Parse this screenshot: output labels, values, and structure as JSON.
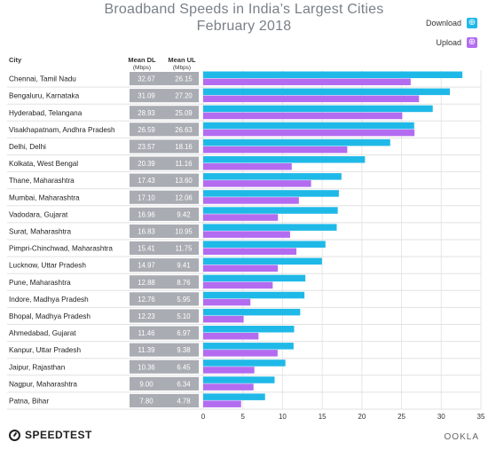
{
  "title_line1": "Broadband Speeds in India’s Largest Cities",
  "title_line2": "February 2018",
  "legend": {
    "download": "Download",
    "upload": "Upload"
  },
  "colors": {
    "download": "#1fb9e8",
    "upload": "#b36cf0",
    "value_cell": "#a9acb2",
    "row_line": "#e2e2e2"
  },
  "headers": {
    "city": "City",
    "dl": "Mean DL",
    "ul": "Mean UL",
    "unit": "(Mbps)"
  },
  "chart_data": {
    "type": "bar",
    "orientation": "horizontal",
    "categories": [
      "Chennai, Tamil Nadu",
      "Bengaluru, Karnataka",
      "Hyderabad, Telangana",
      "Visakhapatnam, Andhra Pradesh",
      "Delhi, Delhi",
      "Kolkata, West Bengal",
      "Thane, Maharashtra",
      "Mumbai, Maharashtra",
      "Vadodara, Gujarat",
      "Surat, Maharashtra",
      "Pimpri-Chinchwad, Maharashtra",
      "Lucknow, Uttar Pradesh",
      "Pune, Maharashtra",
      "Indore, Madhya Pradesh",
      "Bhopal, Madhya Pradesh",
      "Ahmedabad, Gujarat",
      "Kanpur, Uttar Pradesh",
      "Jaipur, Rajasthan",
      "Nagpur, Maharashtra",
      "Patna, Bihar"
    ],
    "series": [
      {
        "name": "Download",
        "values": [
          32.67,
          31.09,
          28.93,
          26.59,
          23.57,
          20.39,
          17.43,
          17.1,
          16.96,
          16.83,
          15.41,
          14.97,
          12.88,
          12.76,
          12.23,
          11.46,
          11.39,
          10.36,
          9.0,
          7.8
        ],
        "labels": [
          "32.67",
          "31.09",
          "28.93",
          "26.59",
          "23.57",
          "20.39",
          "17.43",
          "17.10",
          "16.96",
          "16.83",
          "15.41",
          "14.97",
          "12.88",
          "12.76",
          "12.23",
          "11.46",
          "11.39",
          "10.36",
          "9.00",
          "7.80"
        ]
      },
      {
        "name": "Upload",
        "values": [
          26.15,
          27.2,
          25.09,
          26.63,
          18.16,
          11.16,
          13.6,
          12.06,
          9.42,
          10.95,
          11.75,
          9.41,
          8.76,
          5.95,
          5.1,
          6.97,
          9.38,
          6.45,
          6.34,
          4.78
        ],
        "labels": [
          "26.15",
          "27.20",
          "25.09",
          "26.63",
          "18.16",
          "11.16",
          "13.60",
          "12.06",
          "9.42",
          "10.95",
          "11.75",
          "9.41",
          "8.76",
          "5.95",
          "5.10",
          "6.97",
          "9.38",
          "6.45",
          "6.34",
          "4.78"
        ]
      }
    ],
    "xlim": [
      0,
      35
    ],
    "xticks": [
      0,
      5,
      10,
      15,
      20,
      25,
      30,
      35
    ],
    "grid": true,
    "legend_position": "top-right"
  },
  "footer": {
    "brand": "SPEEDTEST",
    "brand_right": "OOKLA"
  }
}
